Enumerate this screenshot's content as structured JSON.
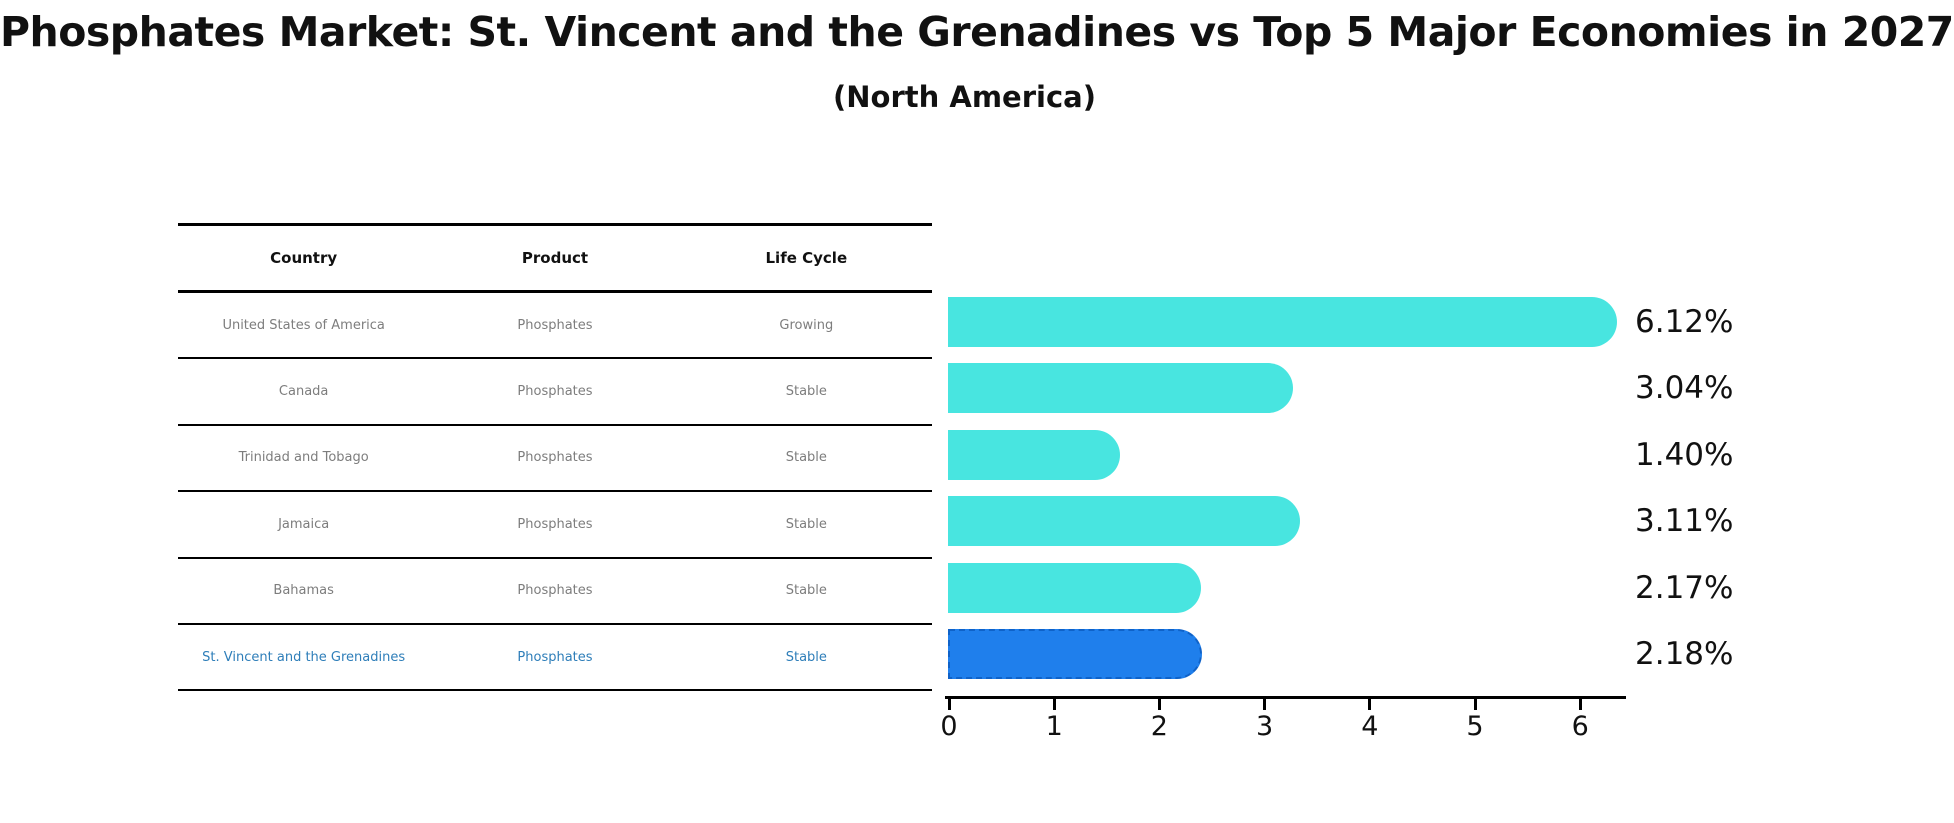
{
  "title": "Phosphates Market: St. Vincent and the Grenadines vs Top 5 Major Economies in 2027",
  "subtitle": "(North America)",
  "table": {
    "columns": [
      "Country",
      "Product",
      "Life Cycle"
    ],
    "rows": [
      {
        "country": "United States of America",
        "product": "Phosphates",
        "life_cycle": "Growing"
      },
      {
        "country": "Canada",
        "product": "Phosphates",
        "life_cycle": "Stable"
      },
      {
        "country": "Trinidad and Tobago",
        "product": "Phosphates",
        "life_cycle": "Stable"
      },
      {
        "country": "Jamaica",
        "product": "Phosphates",
        "life_cycle": "Stable"
      },
      {
        "country": "Bahamas",
        "product": "Phosphates",
        "life_cycle": "Stable"
      },
      {
        "country": "St. Vincent and the Grenadines",
        "product": "Phosphates",
        "life_cycle": "Stable"
      }
    ]
  },
  "colors": {
    "bar": "#48e5e0",
    "highlight_bar": "#1f7fec",
    "highlight_border": "#0f62c8",
    "row_text": "#7d7d7d",
    "highlight_text": "#2e7eb9",
    "text": "#111111"
  },
  "chart_data": {
    "type": "bar",
    "orientation": "horizontal",
    "title": "Phosphates Market: St. Vincent and the Grenadines vs Top 5 Major Economies in 2027",
    "subtitle": "(North America)",
    "categories": [
      "United States of America",
      "Canada",
      "Trinidad and Tobago",
      "Jamaica",
      "Bahamas",
      "St. Vincent and the Grenadines"
    ],
    "values": [
      6.12,
      3.04,
      1.4,
      3.11,
      2.17,
      2.18
    ],
    "value_labels": [
      "6.12%",
      "3.04%",
      "1.40%",
      "3.11%",
      "2.17%",
      "2.18%"
    ],
    "unit": "percent",
    "product": "Phosphates",
    "life_cycles": [
      "Growing",
      "Stable",
      "Stable",
      "Stable",
      "Stable",
      "Stable"
    ],
    "highlight_index": 5,
    "xlim": [
      0,
      6.45
    ],
    "x_ticks": [
      "0",
      "1",
      "2",
      "3",
      "4",
      "5",
      "6"
    ],
    "grid": false,
    "legend": false
  }
}
